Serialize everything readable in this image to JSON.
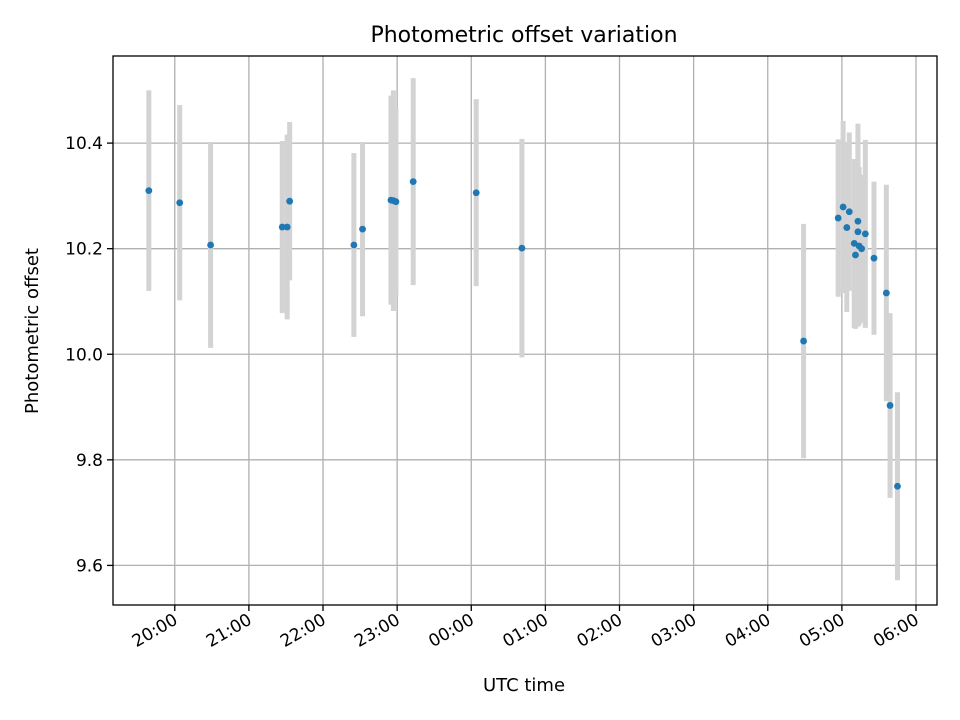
{
  "chart_data": {
    "type": "scatter",
    "title": "Photometric offset variation",
    "xlabel": "UTC time",
    "ylabel": "Photometric offset",
    "x_ticks": [
      "20:00",
      "21:00",
      "22:00",
      "23:00",
      "00:00",
      "01:00",
      "02:00",
      "03:00",
      "04:00",
      "05:00",
      "06:00"
    ],
    "y_ticks": [
      "9.6",
      "9.8",
      "10.0",
      "10.2",
      "10.4"
    ],
    "xlim": [
      "19:10",
      "06:17"
    ],
    "ylim": [
      9.525,
      10.565
    ],
    "grid": true,
    "error_bar_color": "#d3d3d3",
    "marker_color": "#1f77b4",
    "points": [
      {
        "x": "19:39",
        "y": 10.31,
        "err": 0.19
      },
      {
        "x": "20:04",
        "y": 10.287,
        "err": 0.185
      },
      {
        "x": "20:29",
        "y": 10.207,
        "err": 0.195
      },
      {
        "x": "21:27",
        "y": 10.241,
        "err": 0.163
      },
      {
        "x": "21:31",
        "y": 10.241,
        "err": 0.175
      },
      {
        "x": "21:33",
        "y": 10.29,
        "err": 0.15
      },
      {
        "x": "22:25",
        "y": 10.207,
        "err": 0.174
      },
      {
        "x": "22:32",
        "y": 10.237,
        "err": 0.165
      },
      {
        "x": "22:55",
        "y": 10.292,
        "err": 0.198
      },
      {
        "x": "22:57",
        "y": 10.291,
        "err": 0.209
      },
      {
        "x": "22:59",
        "y": 10.289,
        "err": 0.178
      },
      {
        "x": "23:13",
        "y": 10.327,
        "err": 0.196
      },
      {
        "x": "00:04",
        "y": 10.306,
        "err": 0.177
      },
      {
        "x": "00:41",
        "y": 10.201,
        "err": 0.207
      },
      {
        "x": "04:29",
        "y": 10.025,
        "err": 0.222
      },
      {
        "x": "04:57",
        "y": 10.258,
        "err": 0.149
      },
      {
        "x": "05:01",
        "y": 10.279,
        "err": 0.163
      },
      {
        "x": "05:04",
        "y": 10.24,
        "err": 0.16
      },
      {
        "x": "05:06",
        "y": 10.27,
        "err": 0.15
      },
      {
        "x": "05:10",
        "y": 10.21,
        "err": 0.16
      },
      {
        "x": "05:11",
        "y": 10.188,
        "err": 0.14
      },
      {
        "x": "05:13",
        "y": 10.252,
        "err": 0.185
      },
      {
        "x": "05:13",
        "y": 10.232,
        "err": 0.18
      },
      {
        "x": "05:14",
        "y": 10.205,
        "err": 0.15
      },
      {
        "x": "05:16",
        "y": 10.2,
        "err": 0.14
      },
      {
        "x": "05:19",
        "y": 10.228,
        "err": 0.178
      },
      {
        "x": "05:26",
        "y": 10.182,
        "err": 0.145
      },
      {
        "x": "05:36",
        "y": 10.116,
        "err": 0.205
      },
      {
        "x": "05:39",
        "y": 9.903,
        "err": 0.175
      },
      {
        "x": "05:45",
        "y": 9.75,
        "err": 0.178
      }
    ]
  }
}
